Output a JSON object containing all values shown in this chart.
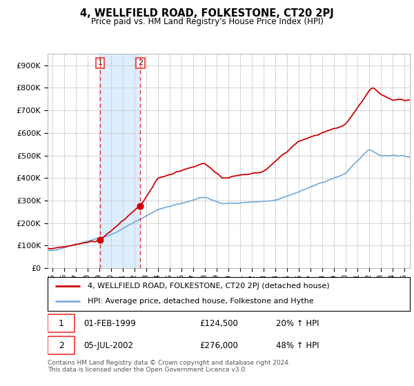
{
  "title": "4, WELLFIELD ROAD, FOLKESTONE, CT20 2PJ",
  "subtitle": "Price paid vs. HM Land Registry's House Price Index (HPI)",
  "legend_line1": "4, WELLFIELD ROAD, FOLKESTONE, CT20 2PJ (detached house)",
  "legend_line2": "HPI: Average price, detached house, Folkestone and Hythe",
  "transaction1_date": "01-FEB-1999",
  "transaction1_price": "£124,500",
  "transaction1_hpi": "20% ↑ HPI",
  "transaction1_year": 1999.08,
  "transaction1_value": 124500,
  "transaction2_date": "05-JUL-2002",
  "transaction2_price": "£276,000",
  "transaction2_hpi": "48% ↑ HPI",
  "transaction2_year": 2002.5,
  "transaction2_value": 276000,
  "footer": "Contains HM Land Registry data © Crown copyright and database right 2024.\nThis data is licensed under the Open Government Licence v3.0.",
  "red_color": "#cc0000",
  "blue_color": "#7aaddb",
  "shade_color": "#ddeeff",
  "vline_color": "#ee3333",
  "background_color": "#ffffff",
  "grid_color": "#cccccc",
  "ylim": [
    0,
    950000
  ],
  "yticks": [
    0,
    100000,
    200000,
    300000,
    400000,
    500000,
    600000,
    700000,
    800000,
    900000
  ],
  "ytick_labels": [
    "£0",
    "£100K",
    "£200K",
    "£300K",
    "£400K",
    "£500K",
    "£600K",
    "£700K",
    "£800K",
    "£900K"
  ],
  "xstart": 1994.6,
  "xend": 2025.5,
  "xticks": [
    1995,
    1996,
    1997,
    1998,
    1999,
    2000,
    2001,
    2002,
    2003,
    2004,
    2005,
    2006,
    2007,
    2008,
    2009,
    2010,
    2011,
    2012,
    2013,
    2014,
    2015,
    2016,
    2017,
    2018,
    2019,
    2020,
    2021,
    2022,
    2023,
    2024,
    2025
  ]
}
